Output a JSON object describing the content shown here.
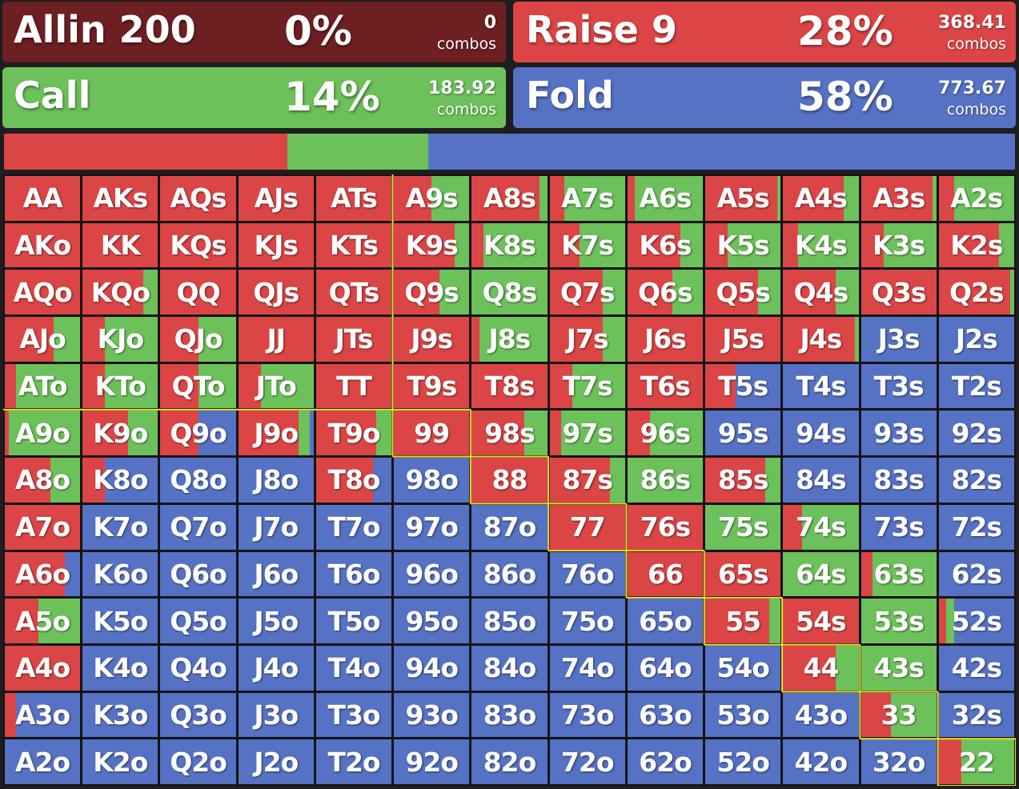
{
  "colors": {
    "allin": "#6e1f22",
    "raise": "#dc4545",
    "call": "#6cc15a",
    "fold": "#5672c4",
    "boundary": "#e8e22a"
  },
  "actions": [
    {
      "id": "allin",
      "label": "Allin 200",
      "pct": "0%",
      "combos": "0",
      "unit": "combos",
      "color": "#6e1f22"
    },
    {
      "id": "raise",
      "label": "Raise 9",
      "pct": "28%",
      "combos": "368.41",
      "unit": "combos",
      "color": "#dc4545"
    },
    {
      "id": "call",
      "label": "Call",
      "pct": "14%",
      "combos": "183.92",
      "unit": "combos",
      "color": "#6cc15a"
    },
    {
      "id": "fold",
      "label": "Fold",
      "pct": "58%",
      "combos": "773.67",
      "unit": "combos",
      "color": "#5672c4"
    }
  ],
  "summary": {
    "raise": 28,
    "call": 14,
    "fold": 58
  },
  "rows": [
    "AA AKs AQs AJs ATs A9s A8s A7s A6s A5s A4s A3s A2s",
    "AKo KK KQs KJs KTs K9s K8s K7s K6s K5s K4s K3s K2s",
    "AQo KQo QQ QJs QTs Q9s Q8s Q7s Q6s Q5s Q4s Q3s Q2s",
    "AJo KJo QJo JJ JTs J9s J8s J7s J6s J5s J4s J3s J2s",
    "ATo KTo QTo JTo TT T9s T8s T7s T6s T5s T4s T3s T2s",
    "A9o K9o Q9o J9o T9o 99 98s 97s 96s 95s 94s 93s 92s",
    "A8o K8o Q8o J8o T8o 98o 88 87s 86s 85s 84s 83s 82s",
    "A7o K7o Q7o J7o T7o 97o 87o 77 76s 75s 74s 73s 72s",
    "A6o K6o Q6o J6o T6o 96o 86o 76o 66 65s 64s 63s 62s",
    "A5o K5o Q5o J5o T5o 95o 85o 75o 65o 55 54s 53s 52s",
    "A4o K4o Q4o J4o T4o 94o 84o 74o 64o 54o 44 43s 42s",
    "A3o K3o Q3o J3o T3o 93o 83o 73o 63o 53o 43o 33 32s",
    "A2o K2o Q2o J2o T2o 92o 82o 72o 62o 52o 42o 32o 22"
  ],
  "frequencies": [
    [
      "1,0,0",
      "1,0,0",
      "1,0,0",
      "1,0,0",
      "1,0,0",
      "0.5,0.5,0",
      "0.9,0.1,0",
      "0.2,0.8,0",
      "0.1,0.9,0",
      "0.95,0.05,0",
      "0.8,0.2,0",
      "0.95,0.05,0",
      "0.2,0.8,0"
    ],
    [
      "1,0,0",
      "1,0,0",
      "1,0,0",
      "1,0,0",
      "1,0,0",
      "0.8,0.2,0",
      "0.15,0.85,0",
      "0.4,0.6,0",
      "0.7,0.3,0",
      "0.3,0.7,0",
      "0.2,0.8,0",
      "0.3,0.7,0",
      "0.8,0.2,0"
    ],
    [
      "1,0,0",
      "0.8,0.2,0",
      "1,0,0",
      "1,0,0",
      "1,0,0",
      "0.6,0.4,0",
      "0,1,0",
      "0.7,0.3,0",
      "0.6,0.4,0",
      "0.7,0.3,0",
      "0.7,0.3,0",
      "1,0,0",
      "0.95,0.05,0"
    ],
    [
      "0.65,0.35,0",
      "0.3,0.7,0",
      "0.5,0.5,0",
      "1,0,0",
      "1,0,0",
      "1,0,0",
      "0.1,0.9,0",
      "0.7,0.3,0",
      "1,0,0",
      "1,0,0",
      "0.95,0.05,0",
      "0,0,1",
      "0,0,1"
    ],
    [
      "0.15,0.85,0",
      "0.3,0.7,0",
      "0.5,0.5,0",
      "0.3,0.7,0",
      "1,0,0",
      "1,0,0",
      "1,0,0",
      "0.3,0.7,0",
      "1,0,0",
      "0.4,0,0.6",
      "0,0,1",
      "0,0,1",
      "0,0,1"
    ],
    [
      "0.05,0.95,0",
      "0.6,0.4,0",
      "0.5,0,0.5",
      "0.8,0.15,0.05",
      "0.8,0.2,0",
      "1,0,0",
      "0.7,0.3,0",
      "0.15,0.85,0",
      "0.3,0.7,0",
      "0,0,1",
      "0,0,1",
      "0,0,1",
      "0,0,1"
    ],
    [
      "0.6,0.4,0",
      "0.3,0,0.7",
      "0,0,1",
      "0,0,1",
      "0.75,0,0.25",
      "0,0,1",
      "1,0,0",
      "0.8,0.2,0",
      "0,1,0",
      "0.8,0.2,0",
      "0,0,1",
      "0,0,1",
      "0,0,1"
    ],
    [
      "1,0,0",
      "0,0,1",
      "0,0,1",
      "0,0,1",
      "0,0,1",
      "0,0,1",
      "0,0,1",
      "1,0,0",
      "1,0,0",
      "0,1,0",
      "0.25,0.75,0",
      "0,0,1",
      "0,0,1"
    ],
    [
      "0.8,0,0.2",
      "0,0,1",
      "0,0,1",
      "0,0,1",
      "0,0,1",
      "0,0,1",
      "0,0,1",
      "0,0,1",
      "1,0,0",
      "1,0,0",
      "0,1,0",
      "0.15,0.85,0",
      "0,0,1"
    ],
    [
      "0.45,0.55,0",
      "0,0,1",
      "0,0,1",
      "0,0,1",
      "0,0,1",
      "0,0,1",
      "0,0,1",
      "0,0,1",
      "0,0,1",
      "0.85,0.15,0",
      "1,0,0",
      "0,1,0",
      "0.1,0.1,0.8"
    ],
    [
      "1,0,0",
      "0,0,1",
      "0,0,1",
      "0,0,1",
      "0,0,1",
      "0,0,1",
      "0,0,1",
      "0,0,1",
      "0,0,1",
      "0,0,1",
      "0.7,0.3,0",
      "0,1,0",
      "0,0,1"
    ],
    [
      "0.15,0,0.85",
      "0,0,1",
      "0,0,1",
      "0,0,1",
      "0,0,1",
      "0,0,1",
      "0,0,1",
      "0,0,1",
      "0,0,1",
      "0,0,1",
      "0,0,1",
      "0.4,0.6,0",
      "0,0,1"
    ],
    [
      "0,0,1",
      "0,0,1",
      "0,0,1",
      "0,0,1",
      "0,0,1",
      "0,0,1",
      "0,0,1",
      "0,0,1",
      "0,0,1",
      "0,0,1",
      "0,0,1",
      "0,0,1",
      "0.3,0.7,0"
    ]
  ]
}
